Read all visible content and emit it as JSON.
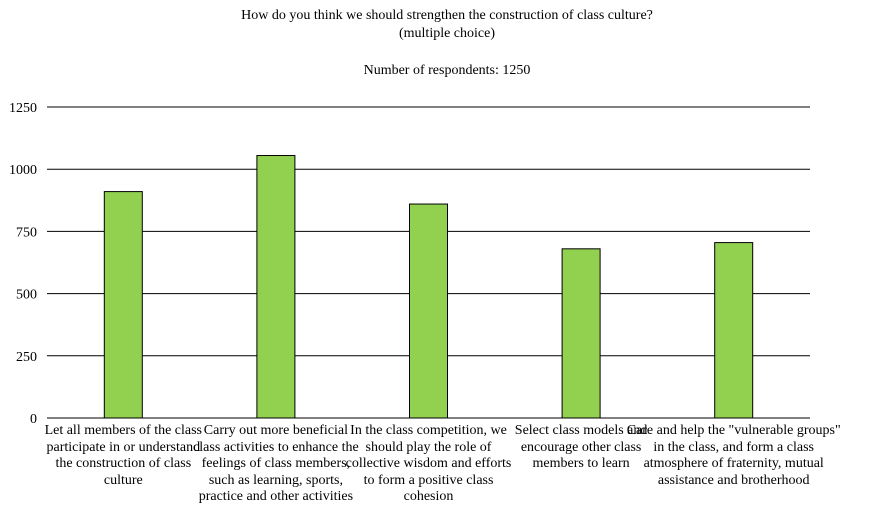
{
  "chart_data": {
    "type": "bar",
    "title": "How do you think we should strengthen the construction of class culture?",
    "subtitle": "(multiple choice)",
    "note": "Number of respondents: 1250",
    "xlabel": "",
    "ylabel": "",
    "ylim": [
      0,
      1250
    ],
    "yticks": [
      0,
      250,
      500,
      750,
      1000,
      1250
    ],
    "grid": true,
    "bar_color": "#92d050",
    "categories": [
      "Let all members of the class participate in or understand the construction of class culture",
      "Carry out more beneficial class activities to enhance the feelings of class members, such as learning, sports, practice and other activities",
      "In the class competition, we should play the role of collective wisdom and efforts to form a positive class cohesion",
      "Select class models and encourage other class members to learn",
      "Care and help the \"vulnerable groups\" in the class, and form a class atmosphere of fraternity, mutual assistance and brotherhood"
    ],
    "values": [
      910,
      1055,
      860,
      680,
      705
    ]
  }
}
